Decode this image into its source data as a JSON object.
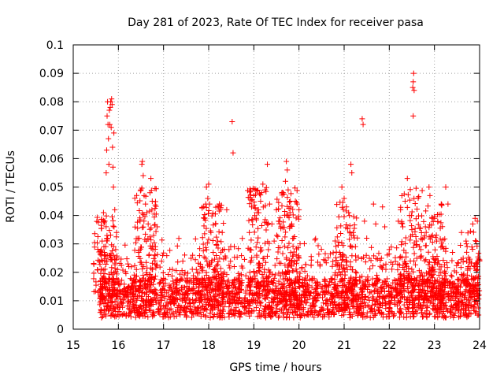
{
  "chart_data": {
    "type": "scatter",
    "title": "Day 281 of 2023, Rate Of TEC Index for receiver pasa",
    "xlabel": "GPS time / hours",
    "ylabel": "ROTI / TECUs",
    "xlim": [
      15,
      24
    ],
    "ylim": [
      0,
      0.1
    ],
    "xticks": [
      "15",
      "16",
      "17",
      "18",
      "19",
      "20",
      "21",
      "22",
      "23",
      "24"
    ],
    "yticks": [
      "0",
      "0.01",
      "0.02",
      "0.03",
      "0.04",
      "0.05",
      "0.06",
      "0.07",
      "0.08",
      "0.09",
      "0.1"
    ],
    "grid": true,
    "marker": "+",
    "color": "#ff0000",
    "series": [
      {
        "points": [
          [
            15.62,
            0.006
          ],
          [
            15.63,
            0.012
          ],
          [
            15.64,
            0.031
          ],
          [
            15.65,
            0.024
          ],
          [
            15.66,
            0.018
          ],
          [
            15.67,
            0.041
          ],
          [
            15.68,
            0.009
          ],
          [
            15.69,
            0.027
          ],
          [
            15.7,
            0.038
          ],
          [
            15.71,
            0.015
          ],
          [
            15.72,
            0.029
          ],
          [
            15.73,
            0.055
          ],
          [
            15.74,
            0.063
          ],
          [
            15.75,
            0.075
          ],
          [
            15.76,
            0.08
          ],
          [
            15.77,
            0.072
          ],
          [
            15.78,
            0.067
          ],
          [
            15.79,
            0.058
          ],
          [
            15.8,
            0.077
          ],
          [
            15.81,
            0.072
          ],
          [
            15.82,
            0.078
          ],
          [
            15.83,
            0.08
          ],
          [
            15.84,
            0.071
          ],
          [
            15.85,
            0.081
          ],
          [
            15.86,
            0.079
          ],
          [
            15.87,
            0.064
          ],
          [
            15.88,
            0.057
          ],
          [
            15.89,
            0.05
          ],
          [
            15.9,
            0.069
          ],
          [
            15.92,
            0.042
          ],
          [
            15.94,
            0.028
          ],
          [
            15.96,
            0.034
          ],
          [
            15.98,
            0.021
          ],
          [
            16.0,
            0.016
          ],
          [
            16.4,
            0.021
          ],
          [
            16.45,
            0.027
          ],
          [
            16.48,
            0.038
          ],
          [
            16.5,
            0.049
          ],
          [
            16.52,
            0.058
          ],
          [
            16.53,
            0.059
          ],
          [
            16.55,
            0.054
          ],
          [
            16.57,
            0.047
          ],
          [
            16.6,
            0.044
          ],
          [
            16.63,
            0.041
          ],
          [
            16.66,
            0.037
          ],
          [
            16.7,
            0.048
          ],
          [
            16.72,
            0.053
          ],
          [
            16.75,
            0.045
          ],
          [
            16.78,
            0.033
          ],
          [
            16.82,
            0.029
          ],
          [
            16.86,
            0.036
          ],
          [
            17.9,
            0.039
          ],
          [
            17.95,
            0.05
          ],
          [
            17.98,
            0.046
          ],
          [
            18.0,
            0.051
          ],
          [
            18.02,
            0.044
          ],
          [
            18.05,
            0.034
          ],
          [
            18.1,
            0.027
          ],
          [
            18.15,
            0.037
          ],
          [
            18.2,
            0.031
          ],
          [
            18.3,
            0.034
          ],
          [
            18.4,
            0.042
          ],
          [
            18.45,
            0.028
          ],
          [
            18.52,
            0.073
          ],
          [
            18.54,
            0.062
          ],
          [
            18.9,
            0.034
          ],
          [
            18.95,
            0.043
          ],
          [
            19.0,
            0.047
          ],
          [
            19.05,
            0.039
          ],
          [
            19.1,
            0.042
          ],
          [
            19.15,
            0.045
          ],
          [
            19.2,
            0.051
          ],
          [
            19.25,
            0.049
          ],
          [
            19.3,
            0.058
          ],
          [
            19.35,
            0.044
          ],
          [
            19.4,
            0.037
          ],
          [
            19.45,
            0.031
          ],
          [
            19.5,
            0.042
          ],
          [
            19.55,
            0.038
          ],
          [
            19.6,
            0.036
          ],
          [
            19.65,
            0.048
          ],
          [
            19.7,
            0.052
          ],
          [
            19.72,
            0.059
          ],
          [
            19.74,
            0.056
          ],
          [
            19.76,
            0.049
          ],
          [
            19.8,
            0.041
          ],
          [
            19.84,
            0.037
          ],
          [
            19.88,
            0.032
          ],
          [
            19.92,
            0.045
          ],
          [
            19.96,
            0.044
          ],
          [
            20.0,
            0.042
          ],
          [
            20.95,
            0.05
          ],
          [
            21.0,
            0.046
          ],
          [
            21.05,
            0.043
          ],
          [
            21.1,
            0.041
          ],
          [
            21.15,
            0.058
          ],
          [
            21.17,
            0.055
          ],
          [
            21.2,
            0.034
          ],
          [
            21.25,
            0.029
          ],
          [
            21.4,
            0.074
          ],
          [
            21.42,
            0.072
          ],
          [
            21.45,
            0.038
          ],
          [
            21.5,
            0.032
          ],
          [
            21.65,
            0.044
          ],
          [
            21.7,
            0.037
          ],
          [
            21.85,
            0.043
          ],
          [
            21.9,
            0.036
          ],
          [
            22.0,
            0.028
          ],
          [
            22.2,
            0.038
          ],
          [
            22.25,
            0.042
          ],
          [
            22.3,
            0.036
          ],
          [
            22.35,
            0.045
          ],
          [
            22.4,
            0.053
          ],
          [
            22.45,
            0.04
          ],
          [
            22.5,
            0.035
          ],
          [
            22.52,
            0.085
          ],
          [
            22.53,
            0.087
          ],
          [
            22.54,
            0.09
          ],
          [
            22.55,
            0.084
          ],
          [
            22.53,
            0.075
          ],
          [
            22.6,
            0.031
          ],
          [
            22.7,
            0.028
          ],
          [
            22.8,
            0.036
          ],
          [
            22.88,
            0.05
          ],
          [
            22.9,
            0.047
          ],
          [
            22.95,
            0.039
          ],
          [
            23.05,
            0.031
          ],
          [
            23.15,
            0.044
          ],
          [
            23.25,
            0.05
          ],
          [
            23.3,
            0.044
          ],
          [
            23.4,
            0.027
          ],
          [
            23.6,
            0.034
          ],
          [
            23.7,
            0.031
          ],
          [
            23.85,
            0.037
          ],
          [
            23.9,
            0.039
          ],
          [
            23.95,
            0.038
          ],
          [
            24.0,
            0.024
          ]
        ]
      }
    ]
  }
}
